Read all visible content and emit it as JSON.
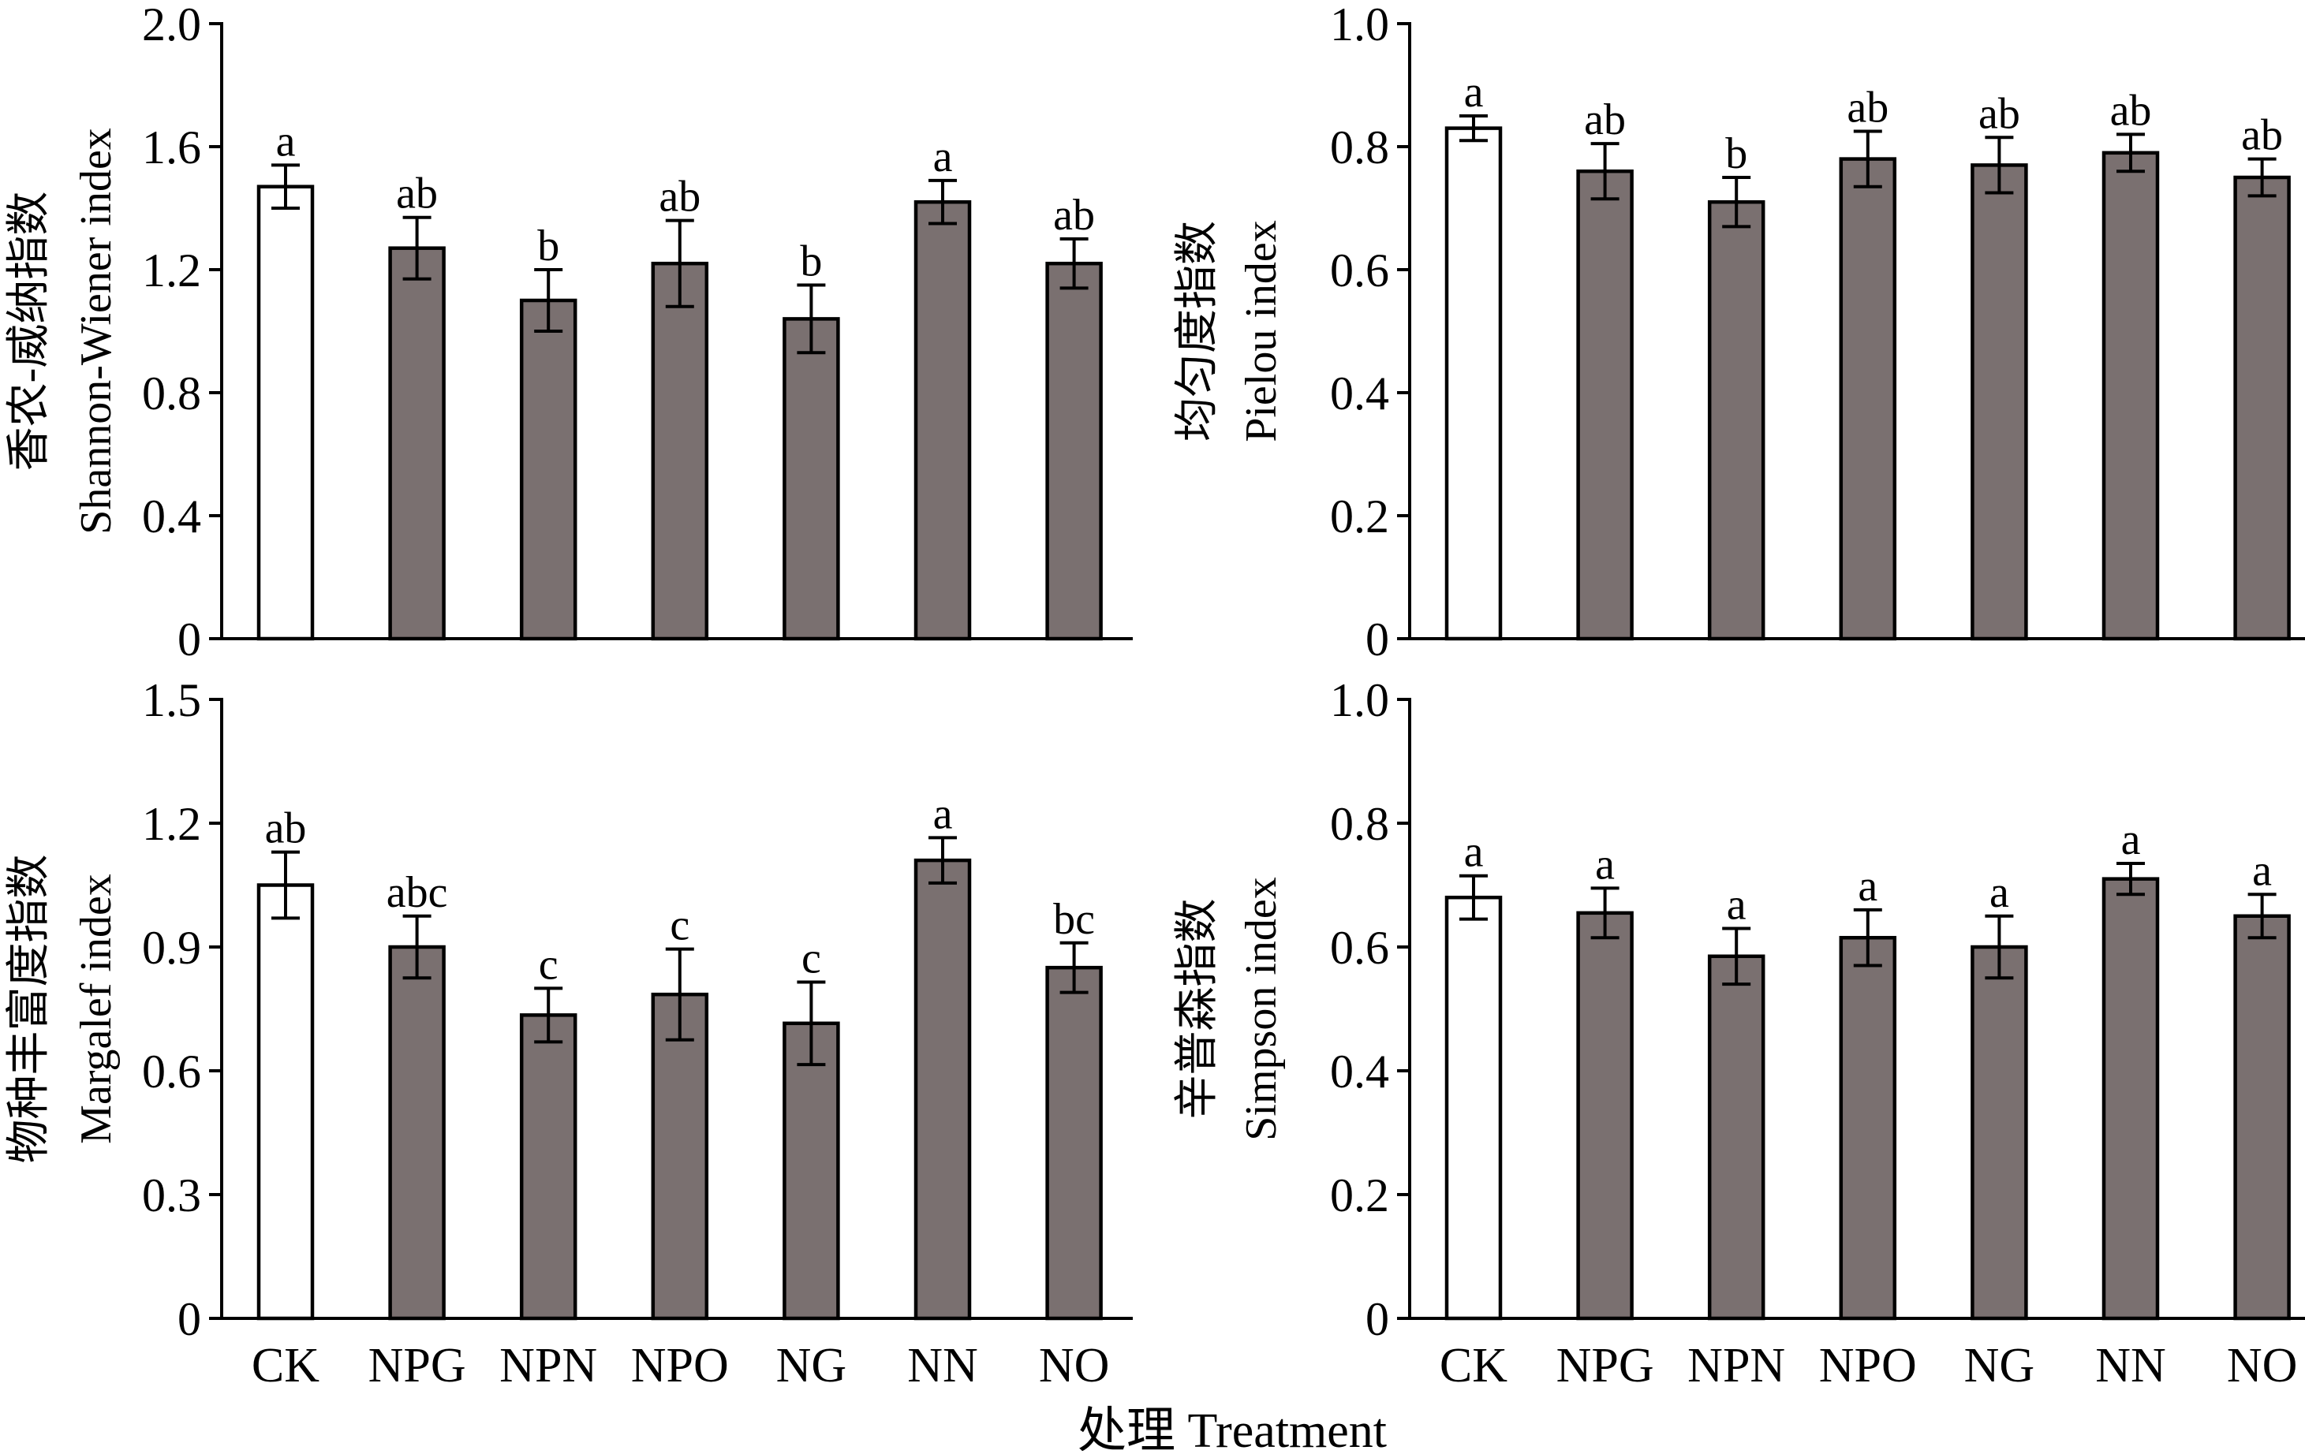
{
  "x_title": "处理 Treatment",
  "chart_data": [
    {
      "type": "bar",
      "panel": "top-left",
      "categories": [
        "CK",
        "NPG",
        "NPN",
        "NPO",
        "NG",
        "NN",
        "NO"
      ],
      "values": [
        1.47,
        1.27,
        1.1,
        1.22,
        1.04,
        1.42,
        1.22
      ],
      "errors": [
        0.07,
        0.1,
        0.1,
        0.14,
        0.11,
        0.07,
        0.08
      ],
      "significance": [
        "a",
        "ab",
        "b",
        "ab",
        "b",
        "a",
        "ab"
      ],
      "ylabel_cn": "香农-威纳指数",
      "ylabel_en": "Shannon-Wiener index",
      "ylim": [
        0,
        2.0
      ],
      "yticks": [
        "0",
        "0.4",
        "0.8",
        "1.2",
        "1.6",
        "2.0"
      ],
      "show_xticklabels": false,
      "colors": {
        "control": "#ffffff",
        "treatment": "#7a7070"
      }
    },
    {
      "type": "bar",
      "panel": "top-right",
      "categories": [
        "CK",
        "NPG",
        "NPN",
        "NPO",
        "NG",
        "NN",
        "NO"
      ],
      "values": [
        0.83,
        0.76,
        0.71,
        0.78,
        0.77,
        0.79,
        0.75
      ],
      "errors": [
        0.02,
        0.045,
        0.04,
        0.045,
        0.045,
        0.03,
        0.03
      ],
      "significance": [
        "a",
        "ab",
        "b",
        "ab",
        "ab",
        "ab",
        "ab"
      ],
      "ylabel_cn": "均匀度指数",
      "ylabel_en": "Pielou index",
      "ylim": [
        0,
        1.0
      ],
      "yticks": [
        "0",
        "0.2",
        "0.4",
        "0.6",
        "0.8",
        "1.0"
      ],
      "show_xticklabels": false,
      "colors": {
        "control": "#ffffff",
        "treatment": "#7a7070"
      }
    },
    {
      "type": "bar",
      "panel": "bottom-left",
      "categories": [
        "CK",
        "NPG",
        "NPN",
        "NPO",
        "NG",
        "NN",
        "NO"
      ],
      "values": [
        1.05,
        0.9,
        0.735,
        0.785,
        0.715,
        1.11,
        0.85
      ],
      "errors": [
        0.08,
        0.075,
        0.065,
        0.11,
        0.1,
        0.055,
        0.06
      ],
      "significance": [
        "ab",
        "abc",
        "c",
        "c",
        "c",
        "a",
        "bc"
      ],
      "ylabel_cn": "物种丰富度指数",
      "ylabel_en": "Margalef index",
      "ylim": [
        0,
        1.5
      ],
      "yticks": [
        "0",
        "0.3",
        "0.6",
        "0.9",
        "1.2",
        "1.5"
      ],
      "show_xticklabels": true,
      "colors": {
        "control": "#ffffff",
        "treatment": "#7a7070"
      }
    },
    {
      "type": "bar",
      "panel": "bottom-right",
      "categories": [
        "CK",
        "NPG",
        "NPN",
        "NPO",
        "NG",
        "NN",
        "NO"
      ],
      "values": [
        0.68,
        0.655,
        0.585,
        0.615,
        0.6,
        0.71,
        0.65
      ],
      "errors": [
        0.035,
        0.04,
        0.045,
        0.045,
        0.05,
        0.025,
        0.035
      ],
      "significance": [
        "a",
        "a",
        "a",
        "a",
        "a",
        "a",
        "a"
      ],
      "ylabel_cn": "辛普森指数",
      "ylabel_en": "Simpson index",
      "ylim": [
        0,
        1.0
      ],
      "yticks": [
        "0",
        "0.2",
        "0.4",
        "0.6",
        "0.8",
        "1.0"
      ],
      "show_xticklabels": true,
      "colors": {
        "control": "#ffffff",
        "treatment": "#7a7070"
      }
    }
  ]
}
